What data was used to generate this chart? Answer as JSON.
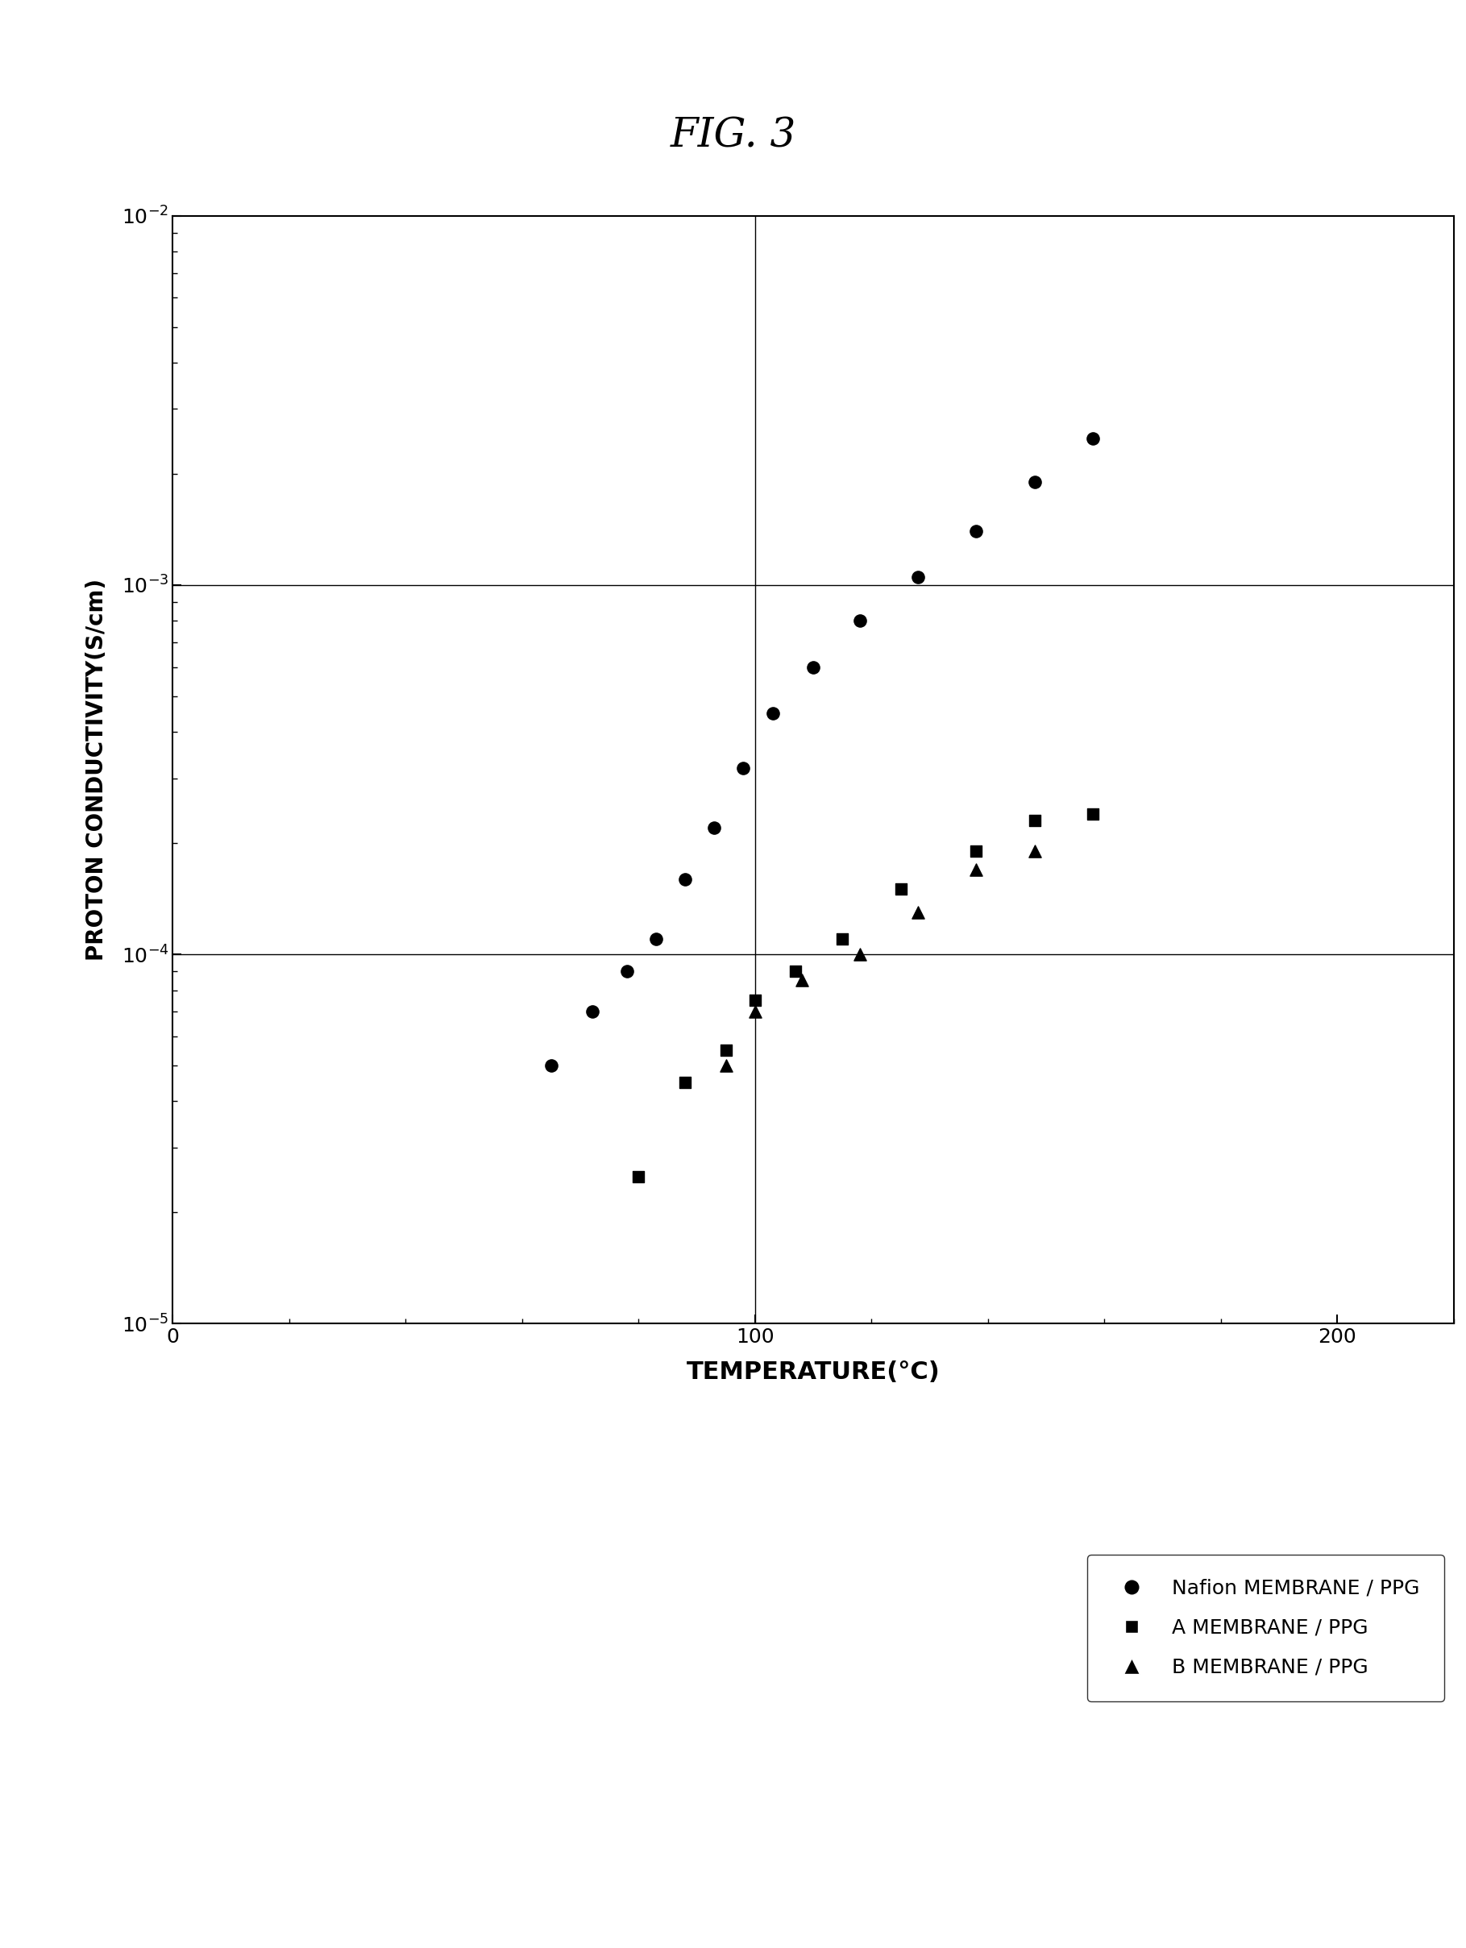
{
  "title": "FIG. 3",
  "xlabel": "TEMPERATURE(°C)",
  "ylabel": "PROTON CONDUCTIVITY(S/cm)",
  "xlim": [
    0,
    220
  ],
  "ylim_log": [
    -5,
    -2
  ],
  "xticks": [
    0,
    100,
    200
  ],
  "nafion_x": [
    65,
    72,
    78,
    83,
    88,
    93,
    98,
    103,
    110,
    118,
    128,
    138,
    148,
    158
  ],
  "nafion_y": [
    5e-05,
    7e-05,
    9e-05,
    0.00011,
    0.00016,
    0.00022,
    0.00032,
    0.00045,
    0.0006,
    0.0008,
    0.00105,
    0.0014,
    0.0019,
    0.0025
  ],
  "a_membrane_x": [
    80,
    88,
    95,
    100,
    107,
    115,
    125,
    138,
    148,
    158
  ],
  "a_membrane_y": [
    2.5e-05,
    4.5e-05,
    5.5e-05,
    7.5e-05,
    9e-05,
    0.00011,
    0.00015,
    0.00019,
    0.00023,
    0.00024
  ],
  "b_membrane_x": [
    95,
    100,
    108,
    118,
    128,
    138,
    148
  ],
  "b_membrane_y": [
    5e-05,
    7e-05,
    8.5e-05,
    0.0001,
    0.00013,
    0.00017,
    0.00019
  ],
  "legend_labels": [
    "Nafion MEMBRANE / PPG",
    "A MEMBRANE / PPG",
    "B MEMBRANE / PPG"
  ],
  "background_color": "#ffffff",
  "marker_color": "#000000",
  "grid_color": "#000000",
  "title_fontsize": 36,
  "label_fontsize": 18,
  "tick_fontsize": 18,
  "legend_fontsize": 16
}
